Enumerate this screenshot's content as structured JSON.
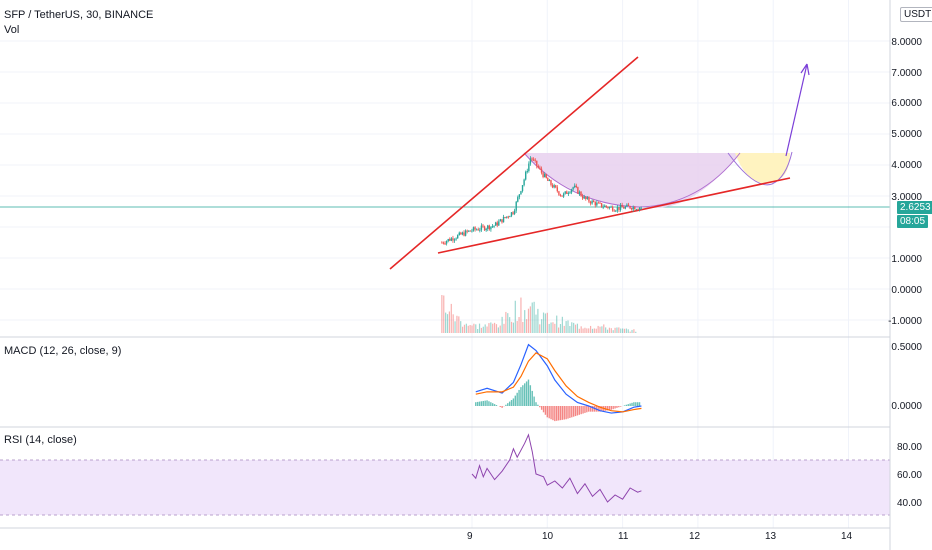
{
  "header": {
    "title": "SFP / TetherUS, 30, BINANCE",
    "vol_label": "Vol",
    "currency": "USDT"
  },
  "macd": {
    "label": "MACD (12, 26, close, 9)",
    "ticks": [
      "0.5000",
      "0.0000"
    ]
  },
  "rsi": {
    "label": "RSI (14, close)",
    "ticks": [
      "80.00",
      "60.00",
      "40.00"
    ]
  },
  "price_tags": {
    "price": "2.6253",
    "countdown": "08:05"
  },
  "price_axis": [
    "8.0000",
    "7.0000",
    "6.0000",
    "5.0000",
    "4.0000",
    "3.0000",
    "1.0000",
    "0.0000",
    "-1.0000"
  ],
  "x_axis": [
    "9",
    "10",
    "11",
    "12",
    "13",
    "14"
  ],
  "colors": {
    "up": "#26a69a",
    "down": "#ef5350",
    "trend": "#e52727",
    "projection": "#7b3fd8",
    "zone_fill": "#e9d3f0",
    "zone_fill_2": "#fff3c0",
    "rsi_band": "#f1e6fb",
    "rsi_line": "#8e44ad"
  },
  "chart_data": [
    {
      "type": "candlestick",
      "title": "SFP / TetherUS, 30, BINANCE",
      "ylim": [
        -1.3,
        8.6
      ],
      "x": [
        8.6,
        9.0,
        9.3,
        9.55,
        9.7,
        9.78,
        10.0,
        10.2,
        10.35,
        10.5,
        10.7,
        10.9,
        11.1,
        11.25
      ],
      "close": [
        1.5,
        1.9,
        2.05,
        2.5,
        3.6,
        4.25,
        3.5,
        3.0,
        3.3,
        2.9,
        2.7,
        2.6,
        2.65,
        2.63
      ],
      "current_price": 2.6253,
      "annotations": [
        {
          "type": "trendline",
          "from": [
            7.9,
            1.7
          ],
          "to": [
            11.2,
            7.5
          ]
        },
        {
          "type": "trendline",
          "from": [
            8.6,
            1.2
          ],
          "to": [
            13.25,
            3.55
          ]
        },
        {
          "type": "arrow",
          "from": [
            13.0,
            4.3
          ],
          "to": [
            13.45,
            7.3
          ]
        }
      ]
    },
    {
      "type": "bar",
      "title": "Vol",
      "x": [
        8.6,
        8.8,
        9.0,
        9.2,
        9.4,
        9.6,
        9.7,
        9.8,
        9.9,
        10.0,
        10.2,
        10.4,
        10.6,
        10.8,
        11.0,
        11.2
      ],
      "values": [
        9,
        4,
        2,
        2,
        3,
        7,
        6,
        8,
        5,
        4,
        3,
        2,
        2,
        1.5,
        1,
        0.6
      ]
    },
    {
      "type": "line",
      "title": "MACD (12, 26, close, 9)",
      "ylim": [
        -0.15,
        0.6
      ],
      "x": [
        9.05,
        9.2,
        9.4,
        9.55,
        9.65,
        9.75,
        9.85,
        10.0,
        10.1,
        10.25,
        10.4,
        10.55,
        10.7,
        10.85,
        11.0,
        11.15,
        11.25
      ],
      "series": [
        {
          "values": [
            0.12,
            0.15,
            0.11,
            0.2,
            0.35,
            0.52,
            0.47,
            0.34,
            0.22,
            0.1,
            0.03,
            0.0,
            -0.04,
            -0.06,
            -0.05,
            -0.01,
            0.0
          ]
        },
        {
          "values": [
            0.1,
            0.12,
            0.12,
            0.16,
            0.25,
            0.38,
            0.45,
            0.4,
            0.3,
            0.17,
            0.08,
            0.03,
            -0.01,
            -0.04,
            -0.05,
            -0.03,
            -0.02
          ]
        }
      ]
    },
    {
      "type": "line",
      "title": "RSI (14, close)",
      "ylim": [
        28,
        92
      ],
      "bands": [
        30,
        70
      ],
      "x": [
        9.0,
        9.05,
        9.1,
        9.15,
        9.2,
        9.3,
        9.4,
        9.5,
        9.55,
        9.6,
        9.7,
        9.75,
        9.8,
        9.85,
        9.95,
        10.0,
        10.1,
        10.2,
        10.3,
        10.4,
        10.5,
        10.6,
        10.7,
        10.8,
        10.9,
        11.0,
        11.1,
        11.2,
        11.25
      ],
      "values": [
        60,
        57,
        66,
        58,
        64,
        56,
        62,
        70,
        78,
        72,
        82,
        88,
        76,
        60,
        58,
        52,
        55,
        50,
        57,
        46,
        53,
        44,
        49,
        40,
        45,
        42,
        50,
        47,
        48
      ]
    }
  ]
}
